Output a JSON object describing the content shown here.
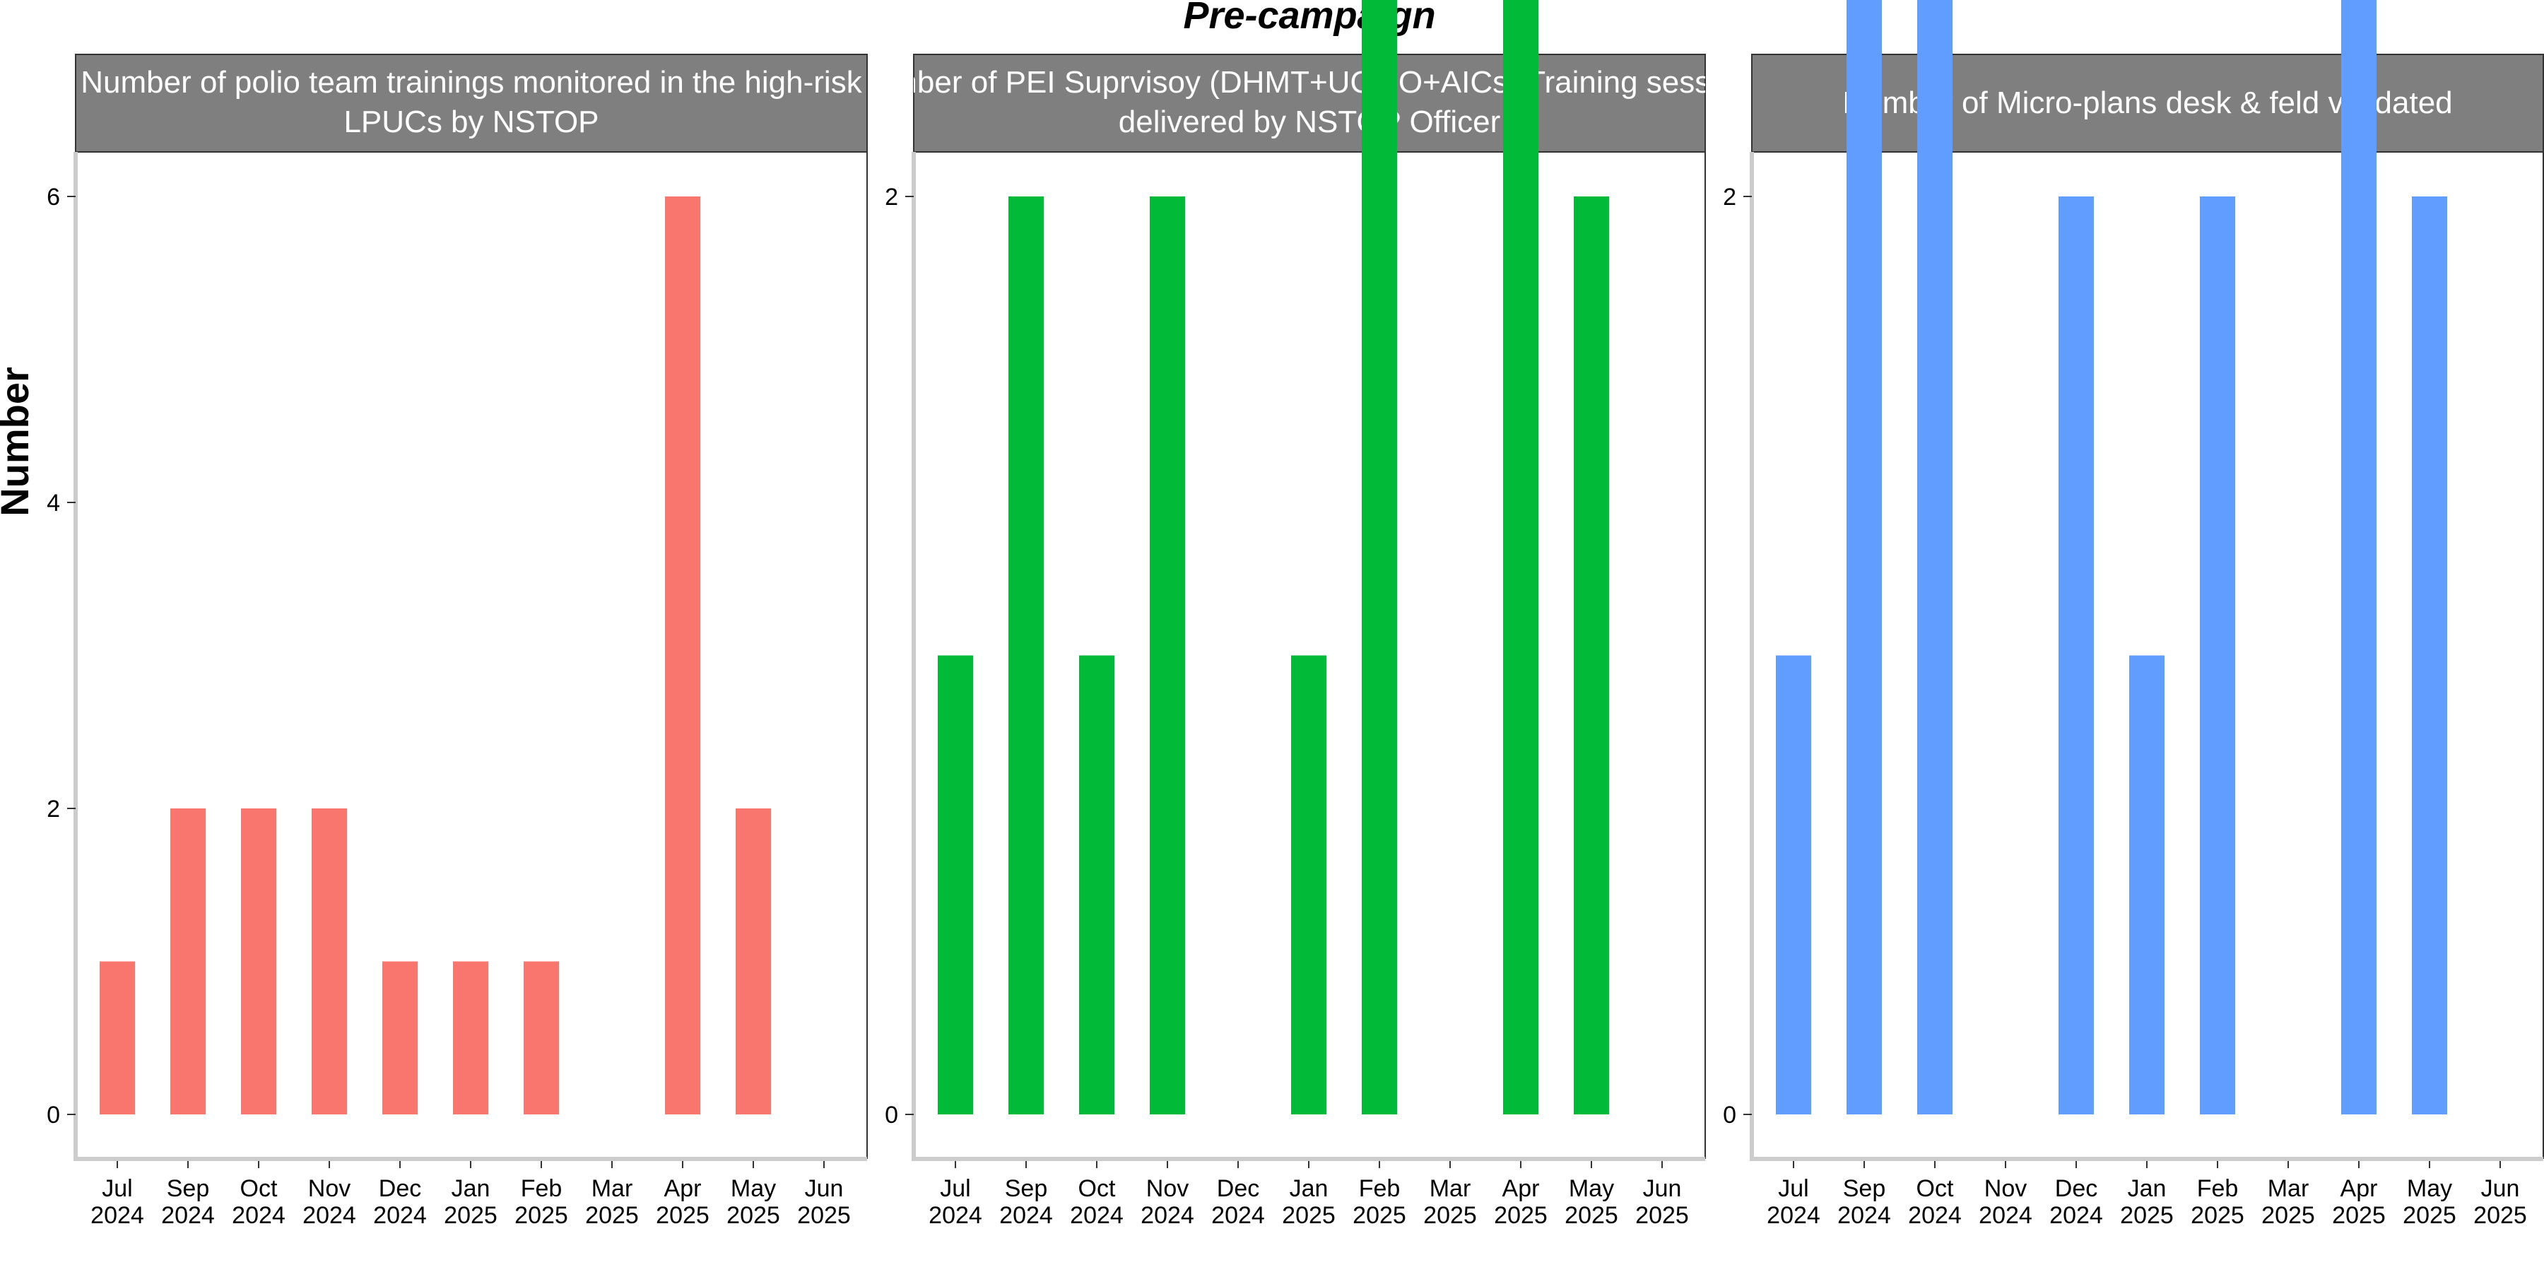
{
  "chart_data": {
    "type": "bar",
    "title": "Pre-campaign",
    "ylabel": "Number",
    "xlabel": "",
    "categories": [
      "Jul\n2024",
      "Sep\n2024",
      "Oct\n2024",
      "Nov\n2024",
      "Dec\n2024",
      "Jan\n2025",
      "Feb\n2025",
      "Mar\n2025",
      "Apr\n2025",
      "May\n2025",
      "Jun\n2025"
    ],
    "grid": false,
    "legend": "none",
    "panels": [
      {
        "strip_lines": [
          "Number of polio team trainings monitored in the high-risk",
          "LPUCs by NSTOP"
        ],
        "color": "#F8766D",
        "ylim": [
          0,
          6.3
        ],
        "yticks": [
          0,
          2,
          4,
          6
        ],
        "ytick_labels": [
          "0",
          "2",
          "4",
          "6"
        ],
        "values": [
          1,
          2,
          2,
          2,
          1,
          1,
          1,
          0,
          6,
          2,
          0
        ]
      },
      {
        "strip_lines": [
          "Number of PEI Suprvisoy (DHMT+UCMO+AICs) Training sessions",
          "delivered by NSTOP Officer"
        ],
        "color": "#00BA38",
        "ylim": [
          0,
          3.1
        ],
        "yticks": [
          0,
          2
        ],
        "ytick_labels": [
          "0",
          "2"
        ],
        "values": [
          1,
          2,
          1,
          2,
          0,
          1,
          3,
          0,
          3,
          2,
          0
        ]
      },
      {
        "strip_lines": [
          "Number of Micro-plans desk & feld validated"
        ],
        "color": "#619CFF",
        "ylim": [
          0,
          3.1
        ],
        "yticks": [
          0,
          2
        ],
        "ytick_labels": [
          "0",
          "2"
        ],
        "values": [
          1,
          3,
          3,
          0,
          2,
          1,
          2,
          0,
          3,
          2,
          0
        ]
      }
    ]
  }
}
